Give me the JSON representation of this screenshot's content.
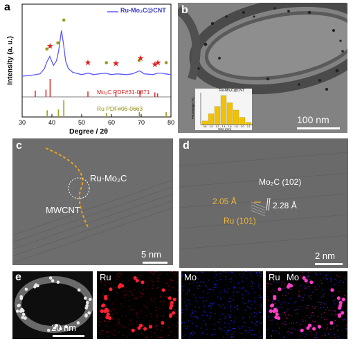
{
  "figure": {
    "panel_labels": {
      "a": "a",
      "b": "b",
      "c": "c",
      "d": "d",
      "e": "e"
    }
  },
  "panel_a": {
    "ylabel": "Intensity (a. u.)",
    "xlabel": "Degree / 2θ",
    "legend": "Ru-Mo₂C@CNT",
    "ref_mo2c": "Mo₂C  PDF#31-0871",
    "ref_ru": "Ru PDF#06-0663",
    "x_ticks": [
      "30",
      "40",
      "50",
      "60",
      "70",
      "80"
    ],
    "colors": {
      "curve": "#5a5aff",
      "mo2c_ref": "#e03030",
      "ru_ref": "#9a9a20",
      "star": "#e02020",
      "dot": "#9a9a20"
    }
  },
  "panel_b": {
    "scalebar": "100 nm",
    "inset_legend": "Ru-Mo₂C@CNT",
    "inset_ylabel": "Percentage (%)",
    "inset_xlabel": "Size (nm)"
  },
  "panel_c": {
    "label_rumo2c": "Ru-Mo₂C",
    "label_mwcnt": "MWCNT",
    "scalebar": "5 nm"
  },
  "panel_d": {
    "label_mo2c": "Mo₂C (102)",
    "label_d1": "2.05 Å",
    "label_d2": "2.28 Å",
    "label_ru": "Ru (101)",
    "scalebar": "2 nm"
  },
  "panel_e": {
    "scalebar": "20 nm",
    "map_ru": "Ru",
    "map_mo": "Mo",
    "map_ru2": "Ru",
    "map_mo2": "Mo"
  },
  "chart_data": [
    {
      "type": "line",
      "title": "",
      "xlabel": "Degree / 2θ",
      "ylabel": "Intensity (a. u.)",
      "xlim": [
        30,
        80
      ],
      "series": [
        {
          "name": "Ru-Mo₂C@CNT",
          "x": [
            30,
            33,
            36,
            37.5,
            38.2,
            39.3,
            40.5,
            41.5,
            42.2,
            43.2,
            43.9,
            44.6,
            45.5,
            47,
            50,
            52.2,
            54,
            57.8,
            60,
            62,
            65,
            67,
            69.5,
            71,
            74,
            75.5,
            77,
            78,
            80
          ],
          "y": [
            0.3,
            0.31,
            0.33,
            0.4,
            0.48,
            0.56,
            0.44,
            0.5,
            0.62,
            0.9,
            0.72,
            0.5,
            0.4,
            0.35,
            0.32,
            0.34,
            0.32,
            0.34,
            0.32,
            0.33,
            0.32,
            0.33,
            0.37,
            0.33,
            0.32,
            0.34,
            0.34,
            0.33,
            0.32
          ]
        }
      ],
      "ref_peaks": [
        {
          "name": "Mo₂C  PDF#31-0871",
          "x": [
            34.4,
            38.0,
            39.4,
            52.1,
            61.5,
            69.6,
            74.6,
            75.5
          ],
          "h": [
            0.35,
            0.4,
            1.0,
            0.3,
            0.25,
            0.35,
            0.25,
            0.2
          ]
        },
        {
          "name": "Ru PDF#06-0663",
          "x": [
            38.4,
            42.2,
            44.0,
            58.3,
            69.4,
            78.4
          ],
          "h": [
            0.4,
            0.45,
            1.0,
            0.25,
            0.3,
            0.3
          ]
        }
      ]
    },
    {
      "type": "bar",
      "title": "",
      "xlabel": "Size (nm)",
      "ylabel": "Percentage (%)",
      "categories": [
        "0.8",
        "1.0",
        "1.2",
        "1.4",
        "1.6",
        "1.8",
        "2.0",
        "2.2"
      ],
      "values": [
        5,
        15,
        25,
        40,
        30,
        20,
        10,
        3
      ],
      "series_name": "Ru-Mo₂C@CNT"
    }
  ]
}
